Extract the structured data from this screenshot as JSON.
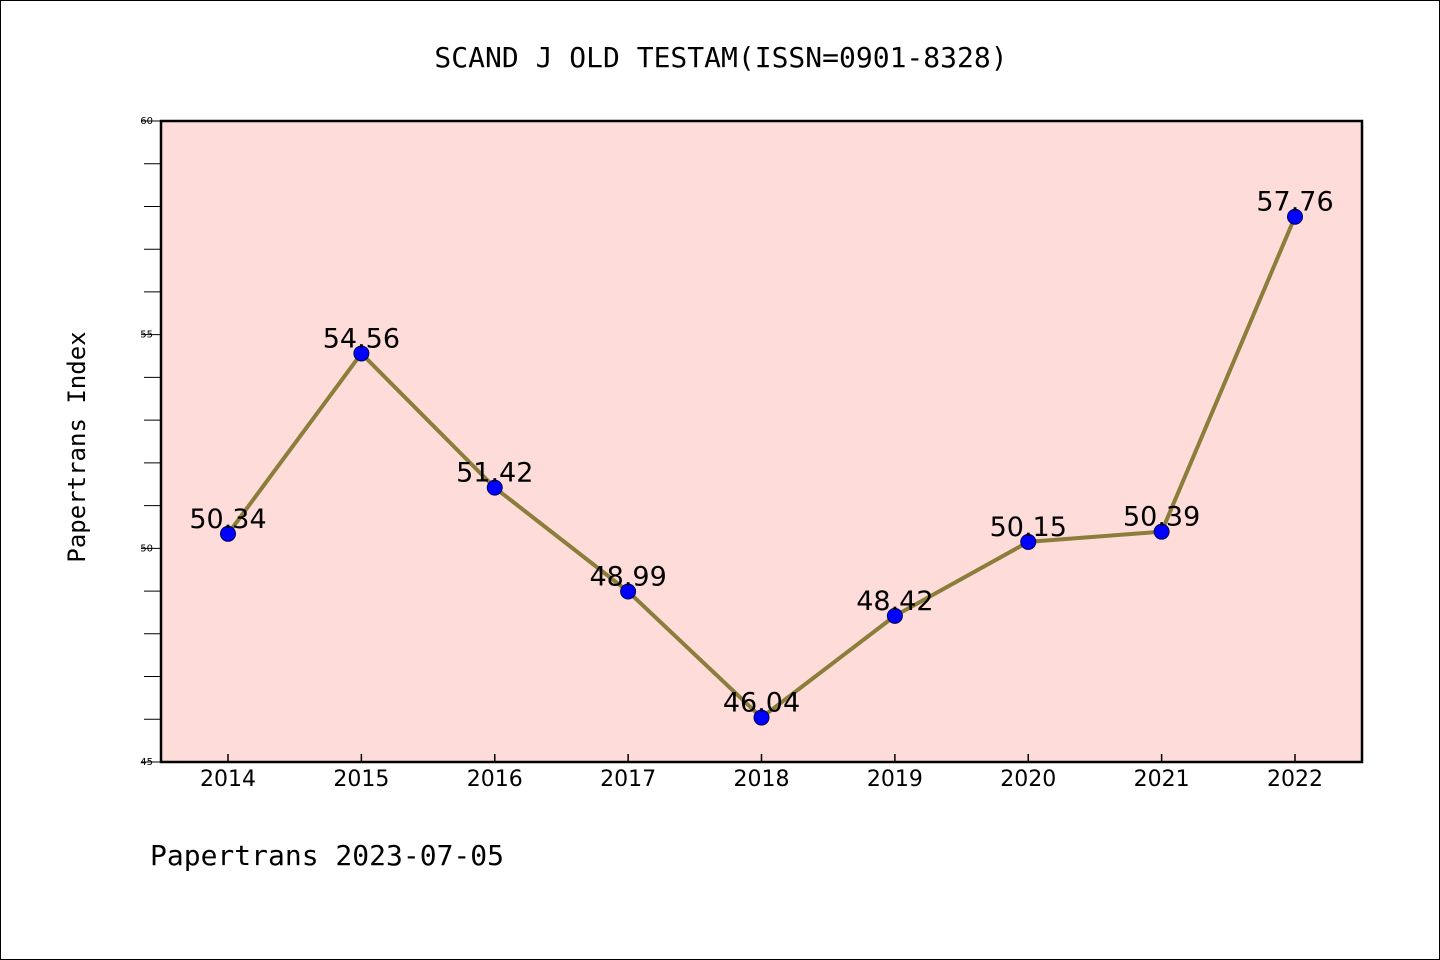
{
  "chart_data": {
    "type": "line",
    "title": "SCAND J OLD TESTAM(ISSN=0901-8328)",
    "ylabel": "Papertrans Index",
    "xlabel": "",
    "categories": [
      "2014",
      "2015",
      "2016",
      "2017",
      "2018",
      "2019",
      "2020",
      "2021",
      "2022"
    ],
    "series": [
      {
        "values": [
          50.34,
          54.56,
          51.42,
          48.99,
          46.04,
          48.42,
          50.15,
          50.39,
          57.76
        ],
        "data_labels": [
          "50.34",
          "54.56",
          "51.42",
          "48.99",
          "46.04",
          "48.42",
          "50.15",
          "50.39",
          "57.76"
        ]
      }
    ],
    "ylim": [
      45,
      60
    ],
    "y_ticks": [
      "45",
      "50",
      "55",
      "60"
    ],
    "grid": false,
    "plot_background": "#fddcd9",
    "line_color": "#8b7d3a",
    "marker_color": "#0000ff"
  },
  "footer": {
    "text": "Papertrans 2023-07-05"
  }
}
